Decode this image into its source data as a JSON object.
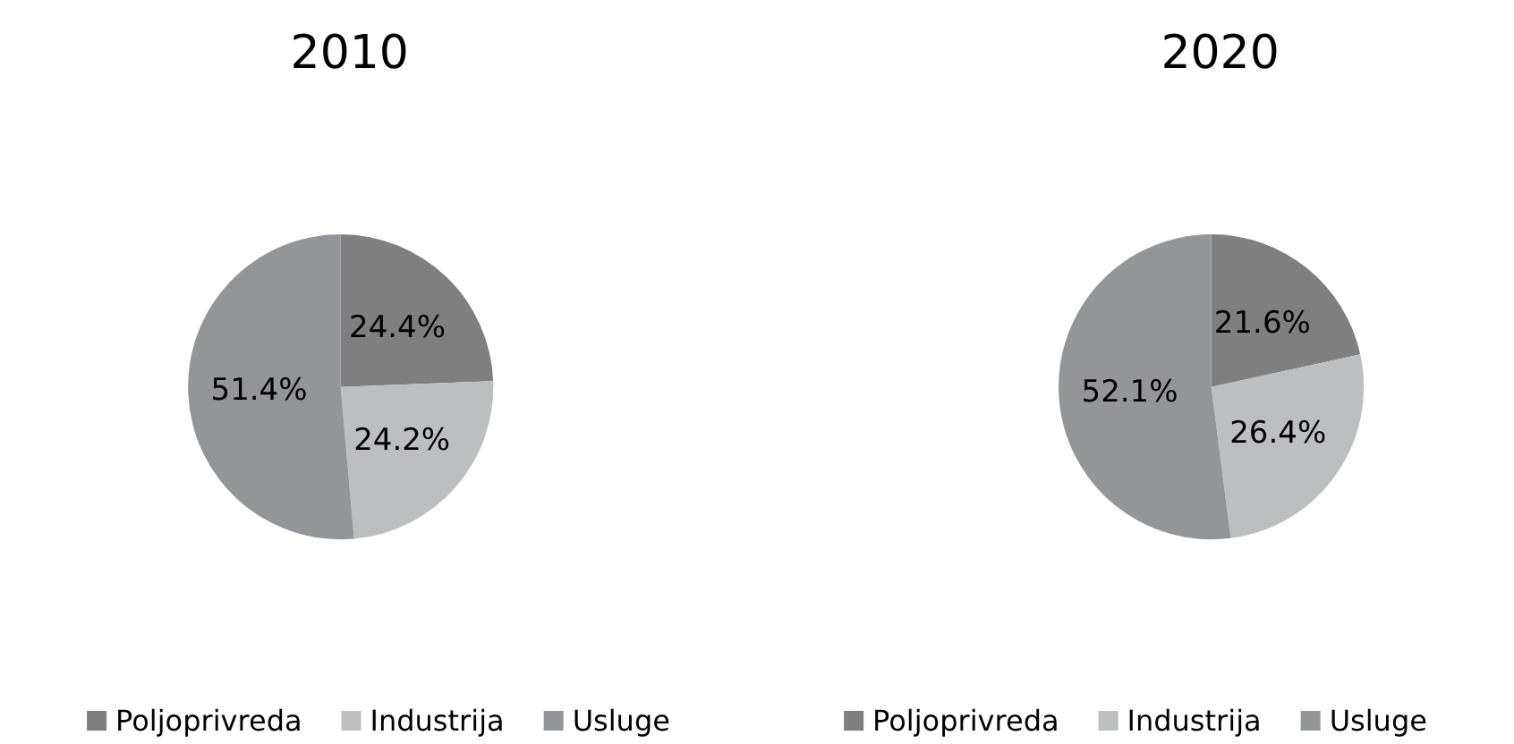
{
  "chart_data": [
    {
      "type": "pie",
      "title": "2010",
      "categories": [
        "Poljoprivreda",
        "Industrija",
        "Usluge"
      ],
      "values": [
        24.4,
        24.2,
        51.4
      ],
      "value_labels": [
        "24.4%",
        "24.2%",
        "51.4%"
      ],
      "colors": [
        "#7f7f80",
        "#bdbec0",
        "#939598"
      ],
      "legend": "bottom"
    },
    {
      "type": "pie",
      "title": "2020",
      "categories": [
        "Poljoprivreda",
        "Industrija",
        "Usluge"
      ],
      "values": [
        21.6,
        26.4,
        52.1
      ],
      "value_labels": [
        "21.6%",
        "26.4%",
        "52.1%"
      ],
      "colors": [
        "#7f7f80",
        "#bdbec0",
        "#939598"
      ],
      "legend": "bottom"
    }
  ]
}
